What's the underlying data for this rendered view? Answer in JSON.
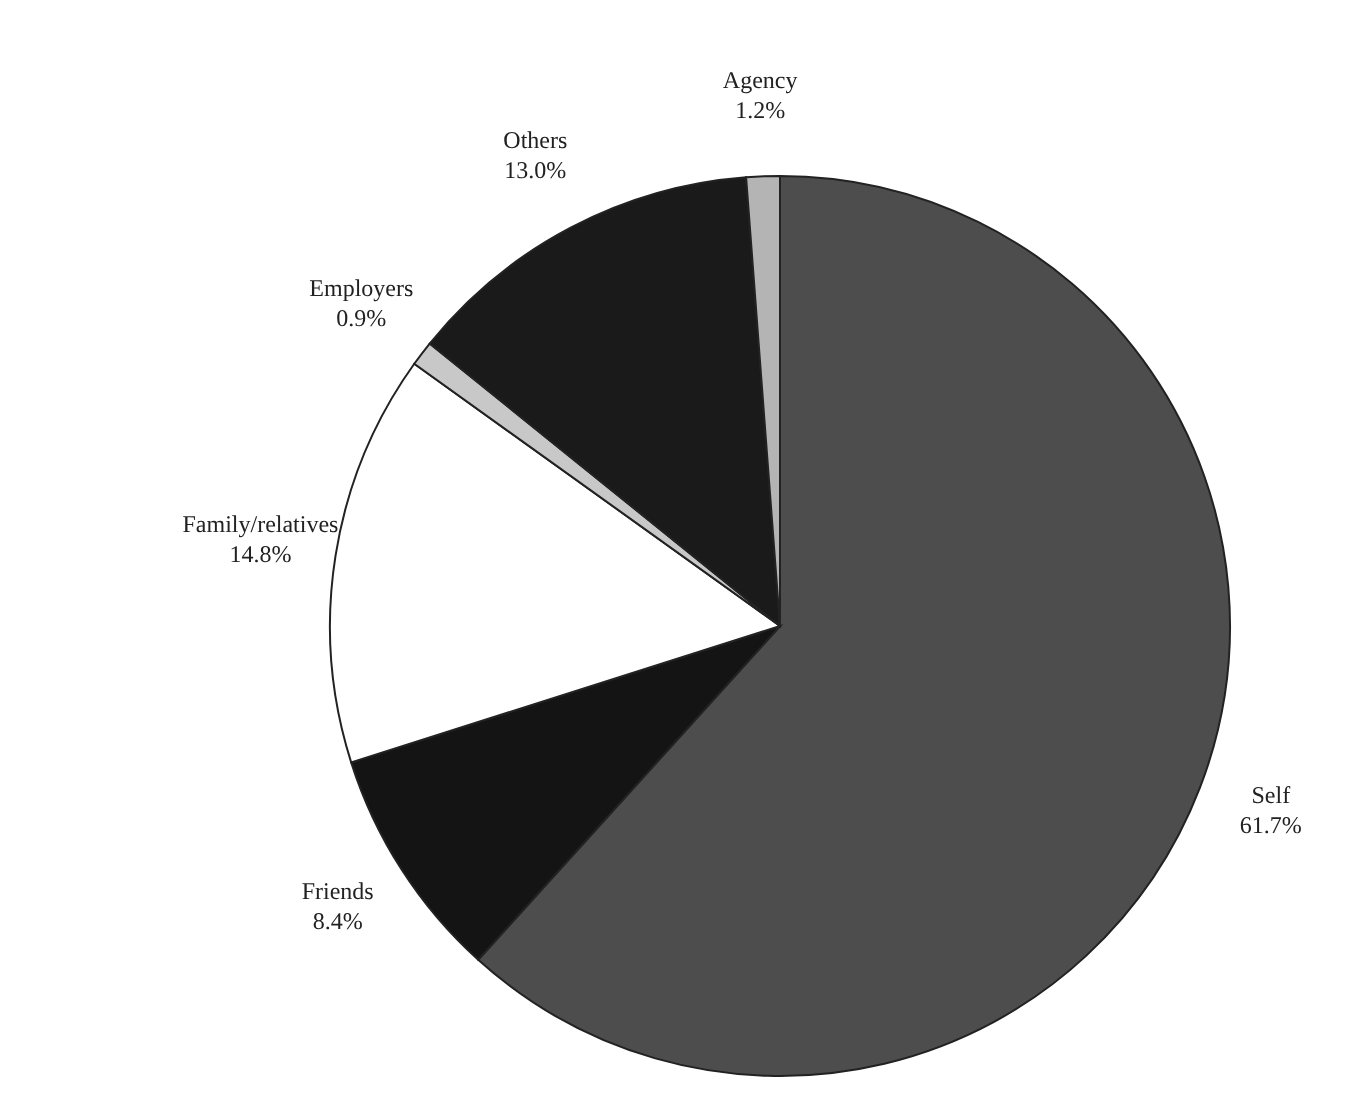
{
  "chart_data": {
    "type": "pie",
    "categories": [
      "Self",
      "Friends",
      "Family/relatives",
      "Employers",
      "Others",
      "Agency"
    ],
    "values": [
      61.7,
      8.4,
      14.8,
      0.9,
      13.0,
      1.2
    ],
    "colors": [
      "#4d4d4d",
      "#141414",
      "#ffffff",
      "#c8c8c8",
      "#1a1a1a",
      "#b4b4b4"
    ],
    "value_labels": [
      "61.7%",
      "8.4%",
      "14.8%",
      "0.9%",
      "13.0%",
      "1.2%"
    ],
    "legend": false
  }
}
